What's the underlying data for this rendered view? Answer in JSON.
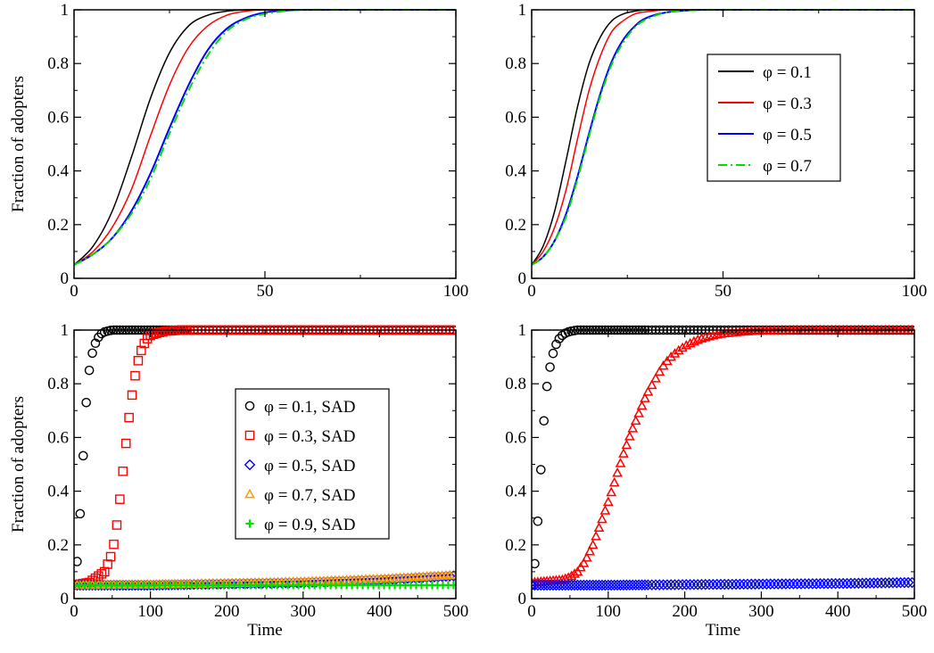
{
  "chart_data": [
    {
      "type": "line",
      "panel": "top-left",
      "ylabel": "Fraction of adopters",
      "xlabel": "",
      "xlim": [
        0,
        100
      ],
      "ylim": [
        0,
        1
      ],
      "xticks": [
        "0",
        "50",
        "100"
      ],
      "yticks": [
        "0",
        "0.2",
        "0.4",
        "0.6",
        "0.8",
        "1"
      ],
      "legend": null,
      "series": [
        {
          "color": "#000000",
          "dash": "solid",
          "x": [
            0,
            5,
            10,
            15,
            20,
            25,
            30,
            35,
            40,
            45,
            50,
            60,
            70,
            80,
            90,
            100
          ],
          "y": [
            0.05,
            0.12,
            0.25,
            0.45,
            0.67,
            0.84,
            0.94,
            0.98,
            0.995,
            1,
            1,
            1,
            1,
            1,
            1,
            1
          ]
        },
        {
          "color": "#ff0000",
          "dash": "solid",
          "x": [
            0,
            5,
            10,
            15,
            20,
            25,
            30,
            35,
            40,
            45,
            50,
            60,
            70,
            80,
            90,
            100
          ],
          "y": [
            0.05,
            0.1,
            0.19,
            0.33,
            0.53,
            0.72,
            0.86,
            0.94,
            0.98,
            0.995,
            1,
            1,
            1,
            1,
            1,
            1
          ]
        },
        {
          "color": "#0000ff",
          "dash": "solid",
          "x": [
            0,
            5,
            10,
            15,
            20,
            25,
            30,
            35,
            40,
            45,
            50,
            55,
            60,
            70,
            80,
            90,
            100
          ],
          "y": [
            0.05,
            0.09,
            0.15,
            0.25,
            0.39,
            0.56,
            0.72,
            0.85,
            0.93,
            0.97,
            0.99,
            0.997,
            1,
            1,
            1,
            1,
            1
          ]
        },
        {
          "color": "#00dd00",
          "dash": "dashdot",
          "x": [
            0,
            5,
            10,
            15,
            20,
            25,
            30,
            35,
            40,
            45,
            50,
            55,
            60,
            70,
            80,
            90,
            100
          ],
          "y": [
            0.05,
            0.09,
            0.15,
            0.24,
            0.37,
            0.54,
            0.7,
            0.83,
            0.92,
            0.965,
            0.985,
            0.995,
            1,
            1,
            1,
            1,
            1
          ]
        }
      ]
    },
    {
      "type": "line",
      "panel": "top-right",
      "ylabel": "",
      "xlabel": "",
      "xlim": [
        0,
        100
      ],
      "ylim": [
        0,
        1
      ],
      "xticks": [
        "0",
        "50",
        "100"
      ],
      "yticks": [
        "0",
        "0.2",
        "0.4",
        "0.6",
        "0.8",
        "1"
      ],
      "legend": "top-right",
      "series": [
        {
          "name": "φ = 0.1",
          "color": "#000000",
          "dash": "solid",
          "x": [
            0,
            3,
            6,
            9,
            12,
            15,
            18,
            21,
            24,
            27,
            30,
            35,
            40,
            50,
            60,
            80,
            100
          ],
          "y": [
            0.05,
            0.12,
            0.25,
            0.44,
            0.64,
            0.8,
            0.9,
            0.96,
            0.985,
            0.995,
            1,
            1,
            1,
            1,
            1,
            1,
            1
          ]
        },
        {
          "name": "φ = 0.3",
          "color": "#ff0000",
          "dash": "solid",
          "x": [
            0,
            3,
            6,
            9,
            12,
            15,
            18,
            21,
            24,
            27,
            30,
            35,
            40,
            50,
            60,
            80,
            100
          ],
          "y": [
            0.05,
            0.1,
            0.19,
            0.33,
            0.52,
            0.7,
            0.83,
            0.92,
            0.96,
            0.985,
            0.993,
            1,
            1,
            1,
            1,
            1,
            1
          ]
        },
        {
          "name": "φ = 0.5",
          "color": "#0000ff",
          "dash": "solid",
          "x": [
            0,
            3,
            6,
            9,
            12,
            15,
            18,
            21,
            24,
            27,
            30,
            35,
            40,
            45,
            50,
            60,
            80,
            100
          ],
          "y": [
            0.05,
            0.08,
            0.14,
            0.24,
            0.38,
            0.54,
            0.69,
            0.81,
            0.89,
            0.94,
            0.97,
            0.99,
            0.997,
            1,
            1,
            1,
            1,
            1
          ]
        },
        {
          "name": "φ = 0.7",
          "color": "#00dd00",
          "dash": "dashdot",
          "x": [
            0,
            3,
            6,
            9,
            12,
            15,
            18,
            21,
            24,
            27,
            30,
            35,
            40,
            45,
            50,
            60,
            80,
            100
          ],
          "y": [
            0.05,
            0.08,
            0.14,
            0.23,
            0.37,
            0.53,
            0.68,
            0.8,
            0.88,
            0.935,
            0.965,
            0.99,
            0.997,
            1,
            1,
            1,
            1,
            1
          ]
        }
      ]
    },
    {
      "type": "scatter",
      "panel": "bottom-left",
      "ylabel": "Fraction of adopters",
      "xlabel": "Time",
      "xlim": [
        0,
        500
      ],
      "ylim": [
        0,
        1
      ],
      "xticks": [
        "0",
        "100",
        "200",
        "300",
        "400",
        "500"
      ],
      "yticks": [
        "0",
        "0.2",
        "0.4",
        "0.6",
        "0.8",
        "1"
      ],
      "legend": "center-right",
      "series": [
        {
          "name": "φ = 0.1, SAD",
          "color": "#000000",
          "marker": "circle",
          "x": [
            0,
            5,
            10,
            15,
            20,
            25,
            30,
            35,
            40,
            45,
            50,
            60,
            70,
            80,
            100,
            150,
            200,
            300,
            400,
            500
          ],
          "y": [
            0.05,
            0.16,
            0.42,
            0.7,
            0.85,
            0.93,
            0.965,
            0.985,
            0.993,
            0.997,
            1,
            1,
            1,
            1,
            1,
            1,
            1,
            1,
            1,
            1
          ]
        },
        {
          "name": "φ = 0.3, SAD",
          "color": "#ff0000",
          "marker": "square",
          "x": [
            0,
            20,
            40,
            50,
            55,
            60,
            65,
            70,
            75,
            80,
            85,
            90,
            95,
            100,
            110,
            120,
            140,
            160,
            200,
            300,
            400,
            500
          ],
          "y": [
            0.05,
            0.06,
            0.1,
            0.17,
            0.25,
            0.37,
            0.5,
            0.63,
            0.74,
            0.83,
            0.9,
            0.94,
            0.965,
            0.98,
            0.99,
            0.996,
            1,
            1,
            1,
            1,
            1,
            1
          ]
        },
        {
          "name": "φ = 0.5, SAD",
          "color": "#0000ff",
          "marker": "diamond",
          "x": [
            0,
            100,
            200,
            300,
            400,
            500
          ],
          "y": [
            0.05,
            0.05,
            0.055,
            0.06,
            0.07,
            0.085
          ]
        },
        {
          "name": "φ = 0.7, SAD",
          "color": "#ff9900",
          "marker": "triangle",
          "x": [
            0,
            100,
            200,
            300,
            400,
            500
          ],
          "y": [
            0.05,
            0.052,
            0.057,
            0.063,
            0.073,
            0.088
          ]
        },
        {
          "name": "φ = 0.9, SAD",
          "color": "#00dd00",
          "marker": "plus",
          "x": [
            0,
            100,
            200,
            300,
            400,
            500
          ],
          "y": [
            0.05,
            0.05,
            0.05,
            0.05,
            0.05,
            0.05
          ]
        }
      ]
    },
    {
      "type": "scatter",
      "panel": "bottom-right",
      "ylabel": "",
      "xlabel": "Time",
      "xlim": [
        0,
        500
      ],
      "ylim": [
        0,
        1
      ],
      "xticks": [
        "0",
        "100",
        "200",
        "300",
        "400",
        "500"
      ],
      "yticks": [
        "0",
        "0.2",
        "0.4",
        "0.6",
        "0.8",
        "1"
      ],
      "legend": null,
      "series": [
        {
          "color": "#000000",
          "marker": "circle",
          "x": [
            0,
            5,
            10,
            15,
            20,
            25,
            30,
            35,
            40,
            45,
            50,
            60,
            70,
            80,
            100,
            150,
            200,
            300,
            400,
            500
          ],
          "y": [
            0.05,
            0.15,
            0.38,
            0.63,
            0.79,
            0.88,
            0.935,
            0.965,
            0.98,
            0.99,
            0.995,
            1,
            1,
            1,
            1,
            1,
            1,
            1,
            1,
            1
          ]
        },
        {
          "color": "#ff0000",
          "marker": "triangle",
          "x": [
            0,
            20,
            40,
            50,
            60,
            70,
            80,
            90,
            100,
            110,
            120,
            130,
            140,
            150,
            160,
            170,
            180,
            190,
            200,
            210,
            220,
            230,
            240,
            250,
            260,
            280,
            300,
            350,
            400,
            450,
            500
          ],
          "y": [
            0.06,
            0.065,
            0.07,
            0.08,
            0.1,
            0.14,
            0.2,
            0.28,
            0.36,
            0.45,
            0.54,
            0.62,
            0.69,
            0.76,
            0.81,
            0.86,
            0.895,
            0.92,
            0.94,
            0.955,
            0.967,
            0.975,
            0.982,
            0.987,
            0.99,
            0.995,
            0.998,
            1,
            1,
            1,
            1
          ]
        },
        {
          "color": "#0000ff",
          "marker": "diamond",
          "x": [
            0,
            100,
            200,
            300,
            400,
            500
          ],
          "y": [
            0.05,
            0.05,
            0.052,
            0.054,
            0.056,
            0.06
          ]
        }
      ]
    }
  ]
}
